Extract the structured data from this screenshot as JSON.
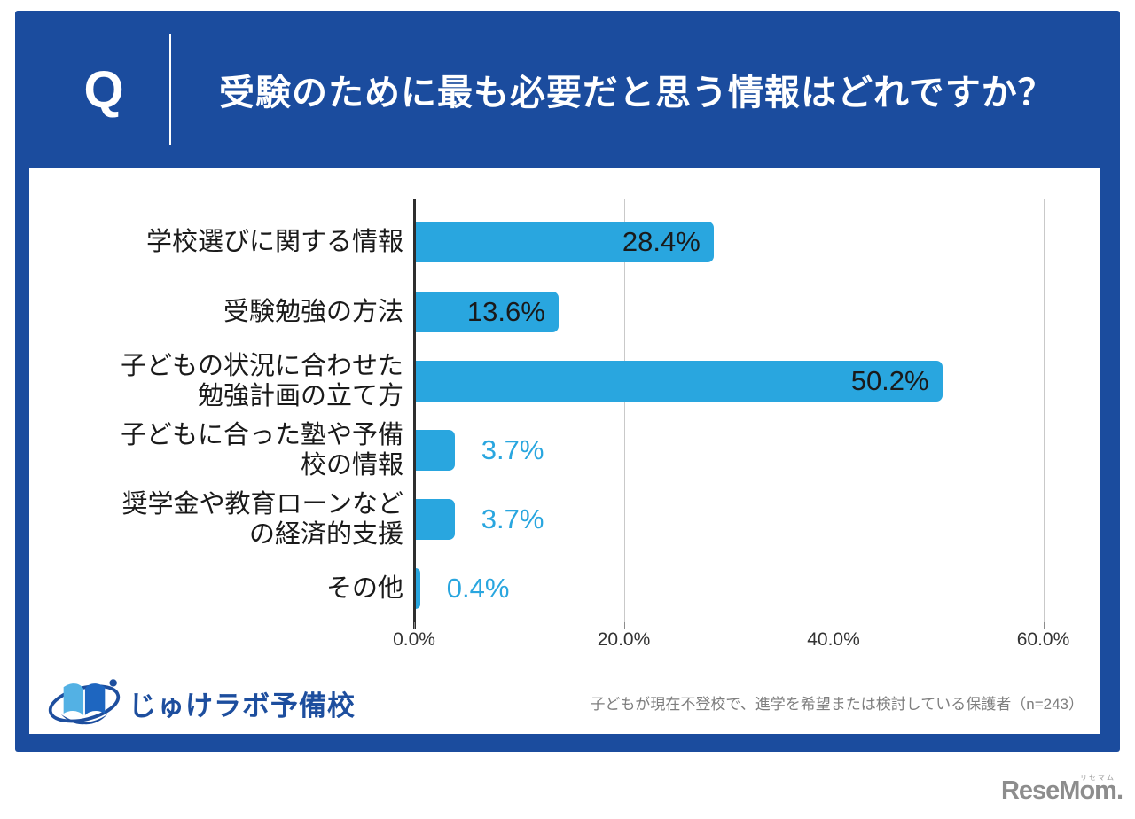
{
  "header": {
    "q_label": "Q",
    "title": "受験のために最も必要だと思う情報はどれですか？"
  },
  "chart_data": {
    "type": "bar",
    "orientation": "horizontal",
    "title": "受験のために最も必要だと思う情報はどれですか？",
    "categories": [
      "学校選びに関する情報",
      "受験勉強の方法",
      "子どもの状況に合わせた勉強計画の立て方",
      "子どもに合った塾や予備校の情報",
      "奨学金や教育ローンなどの経済的支援",
      "その他"
    ],
    "category_lines": [
      [
        "学校選びに関する情報"
      ],
      [
        "受験勉強の方法"
      ],
      [
        "子どもの状況に合わせた",
        "勉強計画の立て方"
      ],
      [
        "子どもに合った塾や予備",
        "校の情報"
      ],
      [
        "奨学金や教育ローンなど",
        "の経済的支援"
      ],
      [
        "その他"
      ]
    ],
    "values": [
      28.4,
      13.6,
      50.2,
      3.7,
      3.7,
      0.4
    ],
    "value_labels": [
      "28.4%",
      "13.6%",
      "50.2%",
      "3.7%",
      "3.7%",
      "0.4%"
    ],
    "value_label_placement": [
      "inside",
      "inside",
      "inside",
      "outside",
      "outside",
      "outside"
    ],
    "x_ticks": [
      {
        "value": 0,
        "label": "0.0%"
      },
      {
        "value": 20,
        "label": "20.0%"
      },
      {
        "value": 40,
        "label": "40.0%"
      },
      {
        "value": 60,
        "label": "60.0%"
      }
    ],
    "xlim": [
      0,
      65
    ],
    "grid": "vertical",
    "legend": "none",
    "sample_size": 243,
    "bar_color": "#29A6DF",
    "inside_label_color": "#1A1A1A",
    "outside_label_color": "#29A6DF"
  },
  "footnote": "子どもが現在不登校で、進学を希望または検討している保護者（n=243）",
  "branding": {
    "survey_logo_text": "じゅけラボ予備校",
    "resemom_logo_text": "ReseMom.",
    "resemom_logo_ruby": "リセマム"
  },
  "colors": {
    "card_blue": "#1B4C9E",
    "bar_blue": "#29A6DF",
    "grid_gray": "#C9C9C9",
    "axis_dark": "#2E2E2E",
    "footnote_gray": "#7E7E7E",
    "resemom_gray": "#8D8D8D"
  }
}
